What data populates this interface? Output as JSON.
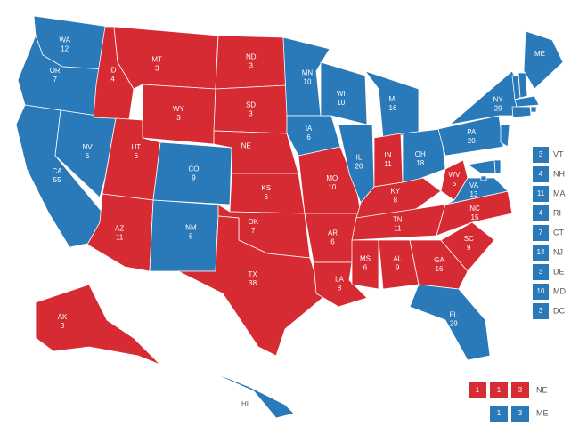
{
  "colors": {
    "D": "#2a79b9",
    "R": "#d62b33"
  },
  "states": [
    {
      "label": "WA",
      "votes": 12,
      "party": "D"
    },
    {
      "label": "OR",
      "votes": 7,
      "party": "D"
    },
    {
      "label": "CA",
      "votes": 55,
      "party": "D"
    },
    {
      "label": "NV",
      "votes": 6,
      "party": "D"
    },
    {
      "label": "ID",
      "votes": 4,
      "party": "R"
    },
    {
      "label": "MT",
      "votes": 3,
      "party": "R"
    },
    {
      "label": "WY",
      "votes": 3,
      "party": "R"
    },
    {
      "label": "UT",
      "votes": 6,
      "party": "R"
    },
    {
      "label": "AZ",
      "votes": 11,
      "party": "R"
    },
    {
      "label": "CO",
      "votes": 9,
      "party": "D"
    },
    {
      "label": "NM",
      "votes": 5,
      "party": "D"
    },
    {
      "label": "ND",
      "votes": 3,
      "party": "R"
    },
    {
      "label": "SD",
      "votes": 3,
      "party": "R"
    },
    {
      "label": "NE",
      "votes": null,
      "party": "R"
    },
    {
      "label": "KS",
      "votes": 6,
      "party": "R"
    },
    {
      "label": "OK",
      "votes": 7,
      "party": "R"
    },
    {
      "label": "TX",
      "votes": 38,
      "party": "R"
    },
    {
      "label": "MN",
      "votes": 10,
      "party": "D"
    },
    {
      "label": "IA",
      "votes": 6,
      "party": "D"
    },
    {
      "label": "MO",
      "votes": 10,
      "party": "R"
    },
    {
      "label": "AR",
      "votes": 6,
      "party": "R"
    },
    {
      "label": "LA",
      "votes": 8,
      "party": "R"
    },
    {
      "label": "WI",
      "votes": 10,
      "party": "D"
    },
    {
      "label": "IL",
      "votes": 20,
      "party": "D"
    },
    {
      "label": "MI",
      "votes": 16,
      "party": "D"
    },
    {
      "label": "IN",
      "votes": 11,
      "party": "R"
    },
    {
      "label": "OH",
      "votes": 18,
      "party": "D"
    },
    {
      "label": "KY",
      "votes": 8,
      "party": "R"
    },
    {
      "label": "TN",
      "votes": 11,
      "party": "R"
    },
    {
      "label": "MS",
      "votes": 6,
      "party": "R"
    },
    {
      "label": "AL",
      "votes": 9,
      "party": "R"
    },
    {
      "label": "GA",
      "votes": 16,
      "party": "R"
    },
    {
      "label": "FL",
      "votes": 29,
      "party": "D"
    },
    {
      "label": "SC",
      "votes": 9,
      "party": "R"
    },
    {
      "label": "NC",
      "votes": 15,
      "party": "R"
    },
    {
      "label": "WV",
      "votes": 5,
      "party": "R"
    },
    {
      "label": "VA",
      "votes": 13,
      "party": "D"
    },
    {
      "label": "PA",
      "votes": 20,
      "party": "D"
    },
    {
      "label": "NY",
      "votes": 29,
      "party": "D"
    },
    {
      "label": "ME",
      "votes": null,
      "party": "D"
    },
    {
      "label": "AK",
      "votes": 3,
      "party": "R"
    },
    {
      "label": "HI",
      "votes": null,
      "party": "D"
    }
  ],
  "small_states": [
    {
      "label": "VT",
      "votes": 3,
      "party": "D"
    },
    {
      "label": "NH",
      "votes": 4,
      "party": "D"
    },
    {
      "label": "MA",
      "votes": 11,
      "party": "D"
    },
    {
      "label": "RI",
      "votes": 4,
      "party": "D"
    },
    {
      "label": "CT",
      "votes": 7,
      "party": "D"
    },
    {
      "label": "NJ",
      "votes": 14,
      "party": "D"
    },
    {
      "label": "DE",
      "votes": 3,
      "party": "D"
    },
    {
      "label": "MD",
      "votes": 10,
      "party": "D"
    },
    {
      "label": "DC",
      "votes": 3,
      "party": "D"
    }
  ],
  "districts": [
    {
      "label": "NE",
      "votes": [
        1,
        1,
        3
      ],
      "party": "R"
    },
    {
      "label": "ME",
      "votes": [
        1,
        3
      ],
      "party": "D"
    }
  ]
}
